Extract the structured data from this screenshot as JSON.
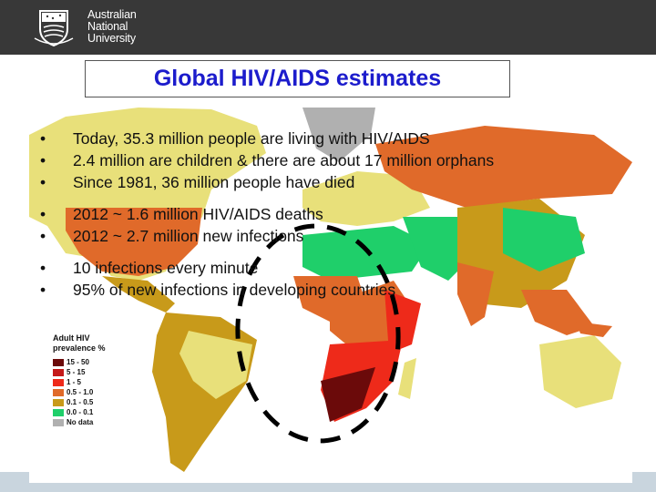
{
  "header": {
    "logo_lines": [
      "Australian",
      "National",
      "University"
    ]
  },
  "title": "Global HIV/AIDS estimates",
  "bullets": {
    "group1": [
      "Today, 35.3 million people are living with HIV/AIDS",
      "2.4 million are children &  there are about 17 million orphans",
      "Since 1981, 36 million people have died"
    ],
    "group2": [
      "2012 ~ 1.6 million HIV/AIDS deaths",
      "2012 ~ 2.7 million new infections"
    ],
    "group3": [
      "10 infections every minute",
      "95% of new infections in developing countries"
    ],
    "marker": "•"
  },
  "legend": {
    "title_line1": "Adult HIV",
    "title_line2": "prevalence %",
    "items": [
      {
        "label": "15 - 50",
        "color": "#6b0a0a"
      },
      {
        "label": "5 - 15",
        "color": "#c41a1a"
      },
      {
        "label": "1 - 5",
        "color": "#ee2a1a"
      },
      {
        "label": "0.5 - 1.0",
        "color": "#e06a2a"
      },
      {
        "label": "0.1 - 0.5",
        "color": "#c89a1a"
      },
      {
        "label": "0.0 - 0.1",
        "color": "#1fcf6a"
      },
      {
        "label": "No data",
        "color": "#b0b0b0"
      }
    ]
  },
  "colors": {
    "ocean": "#ffffff",
    "high": "#6b0a0a",
    "red": "#ee2a1a",
    "orange": "#e06a2a",
    "mustard": "#c89a1a",
    "lightyellow": "#e8e07a",
    "green": "#1fcf6a",
    "gray": "#b0b0b0",
    "title": "#1c1ccc"
  }
}
